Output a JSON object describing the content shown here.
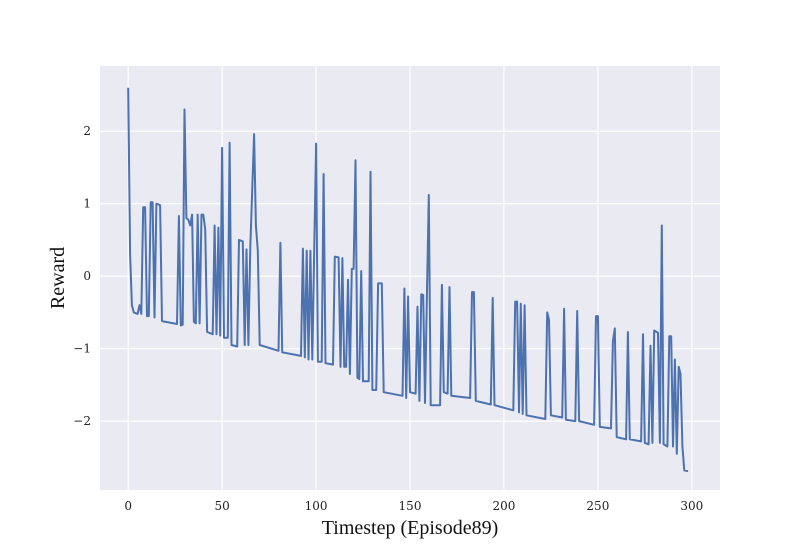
{
  "chart_data": {
    "type": "line",
    "title": "",
    "xlabel": "Timestep (Episode89)",
    "ylabel": "Reward",
    "xlim": [
      -15,
      315
    ],
    "ylim": [
      -2.95,
      2.9
    ],
    "xticks": [
      0,
      50,
      100,
      150,
      200,
      250,
      300
    ],
    "yticks": [
      -2,
      -1,
      0,
      1,
      2
    ],
    "ytick_labels": [
      "−2",
      "−1",
      "0",
      "1",
      "2"
    ],
    "grid": true,
    "colors": {
      "background": "#eaeaf2",
      "grid": "#ffffff",
      "line": "#4c72b0"
    },
    "series": [
      {
        "name": "",
        "points": [
          [
            0,
            2.6
          ],
          [
            1,
            0.3
          ],
          [
            2,
            -0.4
          ],
          [
            3,
            -0.5
          ],
          [
            5,
            -0.52
          ],
          [
            6,
            -0.4
          ],
          [
            7,
            -0.52
          ],
          [
            8,
            0.95
          ],
          [
            9,
            0.95
          ],
          [
            10,
            -0.55
          ],
          [
            11,
            -0.55
          ],
          [
            12,
            1.02
          ],
          [
            13,
            1.02
          ],
          [
            14,
            -0.57
          ],
          [
            15,
            1.0
          ],
          [
            17,
            0.98
          ],
          [
            18,
            -0.62
          ],
          [
            26,
            -0.66
          ],
          [
            27,
            0.83
          ],
          [
            28,
            -0.68
          ],
          [
            29,
            -0.67
          ],
          [
            30,
            2.3
          ],
          [
            31,
            0.8
          ],
          [
            32,
            0.78
          ],
          [
            33,
            0.7
          ],
          [
            34,
            0.85
          ],
          [
            35,
            -0.63
          ],
          [
            36,
            -0.65
          ],
          [
            37,
            0.85
          ],
          [
            38,
            -0.65
          ],
          [
            39,
            0.85
          ],
          [
            40,
            0.85
          ],
          [
            41,
            0.65
          ],
          [
            42,
            -0.77
          ],
          [
            45,
            -0.8
          ],
          [
            46,
            0.7
          ],
          [
            47,
            -0.8
          ],
          [
            48,
            0.67
          ],
          [
            49,
            -0.82
          ],
          [
            50,
            1.77
          ],
          [
            51,
            -0.85
          ],
          [
            53,
            -0.85
          ],
          [
            54,
            1.84
          ],
          [
            55,
            -0.95
          ],
          [
            58,
            -0.97
          ],
          [
            59,
            0.5
          ],
          [
            61,
            0.48
          ],
          [
            62,
            -0.95
          ],
          [
            63,
            0.37
          ],
          [
            64,
            -0.95
          ],
          [
            65,
            0.4
          ],
          [
            67,
            1.96
          ],
          [
            68,
            0.7
          ],
          [
            69,
            0.35
          ],
          [
            70,
            -0.95
          ],
          [
            80,
            -1.03
          ],
          [
            81,
            0.46
          ],
          [
            82,
            -1.05
          ],
          [
            92,
            -1.1
          ],
          [
            93,
            0.38
          ],
          [
            94,
            -1.12
          ],
          [
            95,
            0.35
          ],
          [
            96,
            -1.15
          ],
          [
            97,
            0.35
          ],
          [
            98,
            -1.15
          ],
          [
            100,
            1.83
          ],
          [
            101,
            -1.18
          ],
          [
            103,
            -1.18
          ],
          [
            104,
            1.41
          ],
          [
            105,
            -1.2
          ],
          [
            109,
            -1.22
          ],
          [
            110,
            0.27
          ],
          [
            112,
            0.26
          ],
          [
            113,
            -1.25
          ],
          [
            114,
            0.25
          ],
          [
            115,
            -1.25
          ],
          [
            116,
            -1.25
          ],
          [
            117,
            -0.05
          ],
          [
            118,
            -1.35
          ],
          [
            119,
            0.1
          ],
          [
            120,
            0.1
          ],
          [
            121,
            1.6
          ],
          [
            122,
            -1.4
          ],
          [
            123,
            -1.42
          ],
          [
            124,
            0.07
          ],
          [
            125,
            -1.45
          ],
          [
            128,
            -1.45
          ],
          [
            129,
            1.44
          ],
          [
            130,
            -1.57
          ],
          [
            132,
            -1.57
          ],
          [
            133,
            -0.1
          ],
          [
            135,
            -0.1
          ],
          [
            136,
            -1.6
          ],
          [
            146,
            -1.65
          ],
          [
            147,
            -0.17
          ],
          [
            148,
            -1.68
          ],
          [
            149,
            -0.28
          ],
          [
            150,
            -1.6
          ],
          [
            153,
            -1.62
          ],
          [
            154,
            -0.42
          ],
          [
            155,
            -1.72
          ],
          [
            156,
            -0.25
          ],
          [
            157,
            -0.26
          ],
          [
            158,
            -1.75
          ],
          [
            159,
            -0.28
          ],
          [
            160,
            1.12
          ],
          [
            161,
            -1.78
          ],
          [
            166,
            -1.78
          ],
          [
            167,
            -0.12
          ],
          [
            168,
            -1.6
          ],
          [
            170,
            -1.62
          ],
          [
            171,
            -0.15
          ],
          [
            172,
            -1.65
          ],
          [
            182,
            -1.68
          ],
          [
            183,
            -0.22
          ],
          [
            184,
            -0.22
          ],
          [
            185,
            -1.72
          ],
          [
            193,
            -1.77
          ],
          [
            194,
            -0.3
          ],
          [
            195,
            -1.78
          ],
          [
            205,
            -1.85
          ],
          [
            206,
            -0.35
          ],
          [
            207,
            -0.35
          ],
          [
            208,
            -1.88
          ],
          [
            209,
            -0.38
          ],
          [
            210,
            -1.9
          ],
          [
            211,
            -0.4
          ],
          [
            212,
            -1.92
          ],
          [
            222,
            -1.97
          ],
          [
            223,
            -0.5
          ],
          [
            224,
            -0.6
          ],
          [
            225,
            -1.92
          ],
          [
            231,
            -1.95
          ],
          [
            232,
            -0.45
          ],
          [
            233,
            -1.98
          ],
          [
            238,
            -2.0
          ],
          [
            239,
            -0.48
          ],
          [
            240,
            -2.0
          ],
          [
            248,
            -2.05
          ],
          [
            249,
            -0.55
          ],
          [
            250,
            -0.55
          ],
          [
            251,
            -2.08
          ],
          [
            257,
            -2.1
          ],
          [
            258,
            -0.9
          ],
          [
            259,
            -0.72
          ],
          [
            260,
            -2.22
          ],
          [
            265,
            -2.25
          ],
          [
            266,
            -0.77
          ],
          [
            267,
            -2.25
          ],
          [
            273,
            -2.28
          ],
          [
            274,
            -0.8
          ],
          [
            275,
            -2.3
          ],
          [
            277,
            -2.32
          ],
          [
            278,
            -0.96
          ],
          [
            279,
            -2.3
          ],
          [
            280,
            -0.75
          ],
          [
            282,
            -0.78
          ],
          [
            283,
            -2.3
          ],
          [
            284,
            0.7
          ],
          [
            285,
            -2.32
          ],
          [
            287,
            -2.35
          ],
          [
            288,
            -0.83
          ],
          [
            289,
            -0.83
          ],
          [
            290,
            -2.35
          ],
          [
            291,
            -1.15
          ],
          [
            292,
            -2.45
          ],
          [
            293,
            -1.25
          ],
          [
            294,
            -1.35
          ],
          [
            295,
            -2.35
          ],
          [
            296,
            -2.68
          ],
          [
            298,
            -2.69
          ]
        ]
      }
    ]
  }
}
